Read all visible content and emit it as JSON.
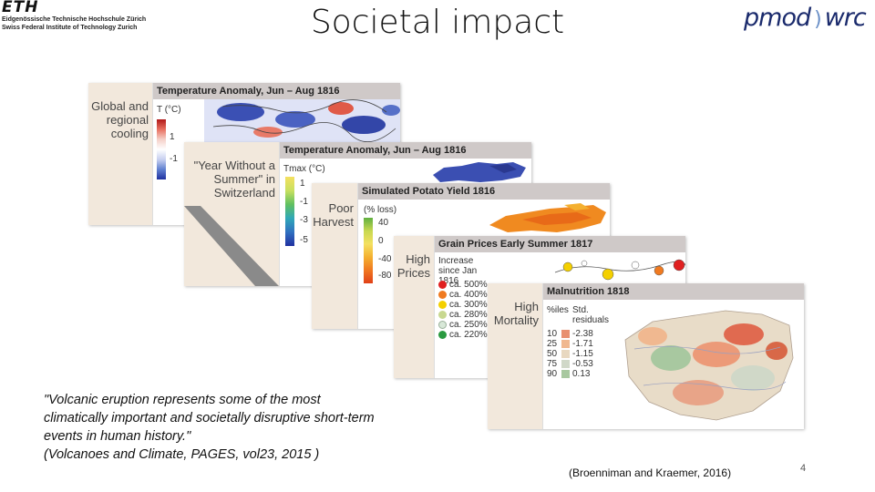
{
  "header": {
    "eth_mark": "ETH",
    "eth_line1": "Eidgenössische Technische Hochschule Zürich",
    "eth_line2": "Swiss Federal Institute of Technology Zurich",
    "title": "Societal impact",
    "pmod_logo_left": "pmod",
    "pmod_logo_right": "wrc"
  },
  "panels": [
    {
      "side_label": "Global and regional cooling",
      "map_title": "Temperature Anomaly, Jun – Aug 1816",
      "legend_title": "T (°C)",
      "legend_values": [
        "1",
        "-1"
      ]
    },
    {
      "side_label": "\"Year Without a Summer\" in Switzerland",
      "map_title": "Temperature Anomaly, Jun – Aug 1816",
      "legend_title": "Tmax (°C)",
      "legend_values": [
        "1",
        "-1",
        "-3",
        "-5"
      ]
    },
    {
      "side_label": "Poor Harvest",
      "map_title": "Simulated Potato Yield 1816",
      "legend_title": "(% loss)",
      "legend_values": [
        "40",
        "0",
        "-40",
        "-80"
      ]
    },
    {
      "side_label": "High Prices",
      "map_title": "Grain Prices Early Summer 1817",
      "legend_title": "Increase since Jan 1816",
      "legend_items": [
        "ca. 500%",
        "ca. 400%",
        "ca. 300%",
        "ca. 280%",
        "ca. 250%",
        "ca. 220%"
      ]
    },
    {
      "side_label": "High Mortality",
      "map_title": "Malnutrition 1818",
      "legend_col1": "%iles",
      "legend_col2": "Std. residuals",
      "legend_rows": [
        {
          "pct": "10",
          "val": "-2.38"
        },
        {
          "pct": "25",
          "val": "-1.71"
        },
        {
          "pct": "50",
          "val": "-1.15"
        },
        {
          "pct": "75",
          "val": "-0.53"
        },
        {
          "pct": "90",
          "val": "0.13"
        }
      ]
    }
  ],
  "colors": {
    "panel_bg": "#f2e8dc",
    "title_bar": "#cfc9c8",
    "cold": "#3a4fb0",
    "warm": "#d03020",
    "harvest_orange": "#f08a20",
    "price_red": "#e02020",
    "price_orange": "#f07a20",
    "price_yellow": "#f4d000",
    "price_lightgreen": "#c8d890",
    "price_pale": "#d8e8d8",
    "price_green": "#2a9a40"
  },
  "quote": {
    "text": "\"Volcanic eruption represents some of the most climatically important and societally disruptive short-term events in human history.\"",
    "source": "(Volcanoes and Climate, PAGES, vol23, 2015 )"
  },
  "citation": "(Broenniman and Kraemer, 2016)",
  "page_number": "4"
}
